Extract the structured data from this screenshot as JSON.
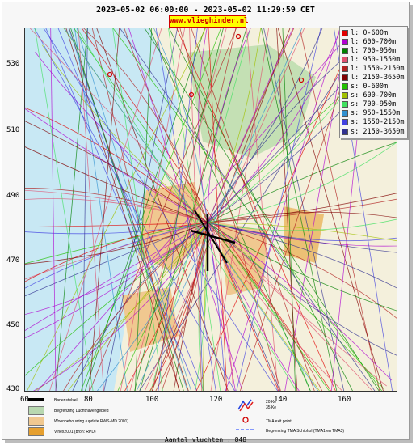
{
  "header": {
    "title": "2023-05-02 06:00:00 - 2023-05-02 11:29:59 CET",
    "site": "www.vlieghinder.nl"
  },
  "axes": {
    "y_ticks": [
      "530",
      "510",
      "490",
      "470",
      "450",
      "430"
    ],
    "x_ticks": [
      "60",
      "80",
      "100",
      "120",
      "140",
      "160"
    ]
  },
  "legend": [
    {
      "label": "l: 0-600m",
      "color": "#e00000"
    },
    {
      "label": "l: 600-700m",
      "color": "#b000d0"
    },
    {
      "label": "l: 700-950m",
      "color": "#008000"
    },
    {
      "label": "l: 950-1550m",
      "color": "#e05070"
    },
    {
      "label": "l: 1550-2150m",
      "color": "#b02020"
    },
    {
      "label": "l: 2150-3650m",
      "color": "#800000"
    },
    {
      "label": "s: 0-600m",
      "color": "#20c000"
    },
    {
      "label": "s: 600-700m",
      "color": "#a0c000"
    },
    {
      "label": "s: 700-950m",
      "color": "#40e060"
    },
    {
      "label": "s: 950-1550m",
      "color": "#3090d0"
    },
    {
      "label": "s: 1550-2150m",
      "color": "#4040e0"
    },
    {
      "label": "s: 2150-3650m",
      "color": "#303090"
    }
  ],
  "key": {
    "runway": "Banenstelsel",
    "airport_boundary": "Begrenzing Luchthavengebied",
    "housing": "Woonbebouwing (update RWS-MD 2001)",
    "vinex": "Vinex2001 (bron: RPD)",
    "ke_20": "20 Ke",
    "ke_35": "35 Ke",
    "tma_exit": "TMA exit point",
    "tma_boundary": "Begrenzing TMA Schiphol (TMA1 en TMA3)"
  },
  "footer": "Aantal vluchten : 848"
}
